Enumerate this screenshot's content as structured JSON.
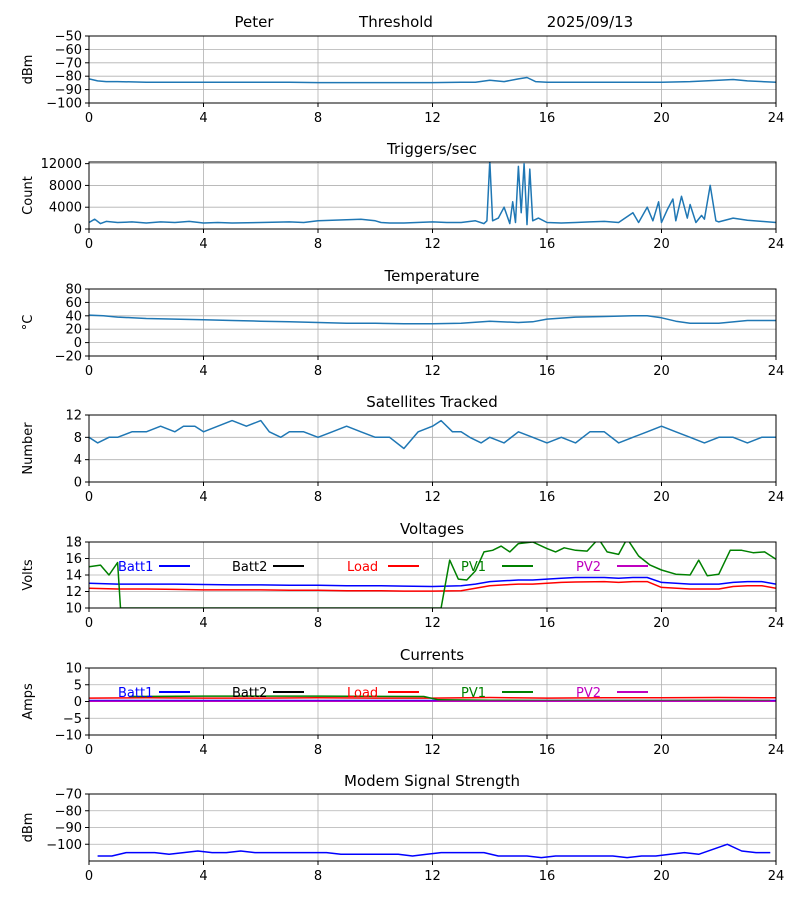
{
  "header": {
    "station": "Peter",
    "mode": "Threshold",
    "date": "2025/09/13"
  },
  "chart_data": [
    {
      "id": "signal",
      "type": "line",
      "title": "",
      "ylabel": "dBm",
      "xlim": [
        0,
        24
      ],
      "ylim": [
        -100,
        -50
      ],
      "xticks": [
        0,
        4,
        8,
        12,
        16,
        20,
        24
      ],
      "yticks": [
        -100,
        -90,
        -80,
        -70,
        -60,
        -50
      ],
      "grid": true,
      "series": [
        {
          "color": "#1f77b4",
          "x": [
            0,
            0.3,
            0.6,
            1,
            2,
            3,
            4,
            5,
            6,
            7,
            8,
            9,
            10,
            11,
            12,
            13,
            13.5,
            14,
            14.5,
            15,
            15.3,
            15.6,
            16,
            17,
            18,
            19,
            20,
            21,
            22,
            22.5,
            23,
            24
          ],
          "y": [
            -82,
            -83.5,
            -84,
            -84,
            -84.5,
            -84.5,
            -84.5,
            -84.5,
            -84.5,
            -84.5,
            -84.8,
            -84.8,
            -84.8,
            -84.8,
            -84.8,
            -84.5,
            -84.5,
            -83,
            -84,
            -82,
            -81,
            -84,
            -84.5,
            -84.5,
            -84.5,
            -84.5,
            -84.5,
            -84,
            -83,
            -82.5,
            -83.5,
            -84.5
          ]
        }
      ]
    },
    {
      "id": "triggers",
      "type": "line",
      "title": "Triggers/sec",
      "ylabel": "Count",
      "xlim": [
        0,
        24
      ],
      "ylim": [
        0,
        12300
      ],
      "xticks": [
        0,
        4,
        8,
        12,
        16,
        20,
        24
      ],
      "yticks": [
        0,
        4000,
        8000,
        12000
      ],
      "grid": true,
      "series": [
        {
          "color": "#1f77b4",
          "x": [
            0,
            0.2,
            0.4,
            0.6,
            1,
            1.5,
            2,
            2.5,
            3,
            3.5,
            4,
            4.5,
            5,
            6,
            7,
            7.5,
            8,
            8.5,
            9,
            9.5,
            10,
            10.2,
            10.5,
            11,
            12,
            12.5,
            13,
            13.5,
            13.8,
            13.9,
            14,
            14.1,
            14.3,
            14.5,
            14.7,
            14.8,
            14.9,
            15,
            15.1,
            15.2,
            15.3,
            15.4,
            15.5,
            15.7,
            16,
            16.5,
            17,
            17.5,
            18,
            18.5,
            19,
            19.2,
            19.5,
            19.7,
            19.9,
            20,
            20.2,
            20.4,
            20.5,
            20.7,
            20.9,
            21,
            21.2,
            21.4,
            21.5,
            21.7,
            21.9,
            22,
            22.5,
            23,
            23.5,
            24
          ],
          "y": [
            1200,
            1800,
            1000,
            1400,
            1200,
            1300,
            1100,
            1300,
            1200,
            1400,
            1100,
            1200,
            1100,
            1200,
            1300,
            1200,
            1500,
            1600,
            1700,
            1800,
            1500,
            1200,
            1100,
            1100,
            1300,
            1200,
            1200,
            1500,
            1000,
            1500,
            12500,
            1500,
            2000,
            4000,
            1000,
            5000,
            1200,
            11500,
            3000,
            12000,
            800,
            11000,
            1500,
            2000,
            1200,
            1100,
            1200,
            1300,
            1400,
            1200,
            3000,
            1200,
            4000,
            1500,
            5000,
            1200,
            3500,
            5500,
            1500,
            6000,
            2000,
            4500,
            1200,
            2500,
            1800,
            8000,
            1500,
            1300,
            2000,
            1600,
            1400,
            1200
          ]
        }
      ]
    },
    {
      "id": "temperature",
      "type": "line",
      "title": "Temperature",
      "ylabel": "°C",
      "xlim": [
        0,
        24
      ],
      "ylim": [
        -20,
        80
      ],
      "xticks": [
        0,
        4,
        8,
        12,
        16,
        20,
        24
      ],
      "yticks": [
        -20,
        0,
        20,
        40,
        60,
        80
      ],
      "grid": true,
      "series": [
        {
          "color": "#1f77b4",
          "x": [
            0,
            0.5,
            1,
            2,
            3,
            4,
            5,
            6,
            7,
            8,
            9,
            10,
            11,
            12,
            13,
            14,
            15,
            15.5,
            16,
            17,
            18,
            19,
            19.5,
            20,
            20.5,
            21,
            22,
            23,
            24
          ],
          "y": [
            41,
            40,
            38,
            36,
            35,
            34,
            33,
            32,
            31,
            30,
            29,
            29,
            28,
            28,
            29,
            32,
            30,
            31,
            35,
            38,
            39,
            40,
            40,
            37,
            32,
            29,
            29,
            33,
            33
          ]
        }
      ]
    },
    {
      "id": "satellites",
      "type": "line",
      "title": "Satellites Tracked",
      "ylabel": "Number",
      "xlim": [
        0,
        24
      ],
      "ylim": [
        0,
        12
      ],
      "xticks": [
        0,
        4,
        8,
        12,
        16,
        20,
        24
      ],
      "yticks": [
        0,
        4,
        8,
        12
      ],
      "grid": true,
      "series": [
        {
          "color": "#1f77b4",
          "x": [
            0,
            0.3,
            0.7,
            1,
            1.5,
            2,
            2.5,
            3,
            3.3,
            3.7,
            4,
            4.5,
            5,
            5.5,
            6,
            6.3,
            6.7,
            7,
            7.5,
            8,
            8.5,
            9,
            9.5,
            10,
            10.5,
            11,
            11.5,
            12,
            12.3,
            12.7,
            13,
            13.3,
            13.7,
            14,
            14.5,
            15,
            15.5,
            16,
            16.5,
            17,
            17.5,
            18,
            18.5,
            19,
            19.5,
            20,
            20.5,
            21,
            21.5,
            22,
            22.5,
            23,
            23.5,
            24
          ],
          "y": [
            8,
            7,
            8,
            8,
            9,
            9,
            10,
            9,
            10,
            10,
            9,
            10,
            11,
            10,
            11,
            9,
            8,
            9,
            9,
            8,
            9,
            10,
            9,
            8,
            8,
            6,
            9,
            10,
            11,
            9,
            9,
            8,
            7,
            8,
            7,
            9,
            8,
            7,
            8,
            7,
            9,
            9,
            7,
            8,
            9,
            10,
            9,
            8,
            7,
            8,
            8,
            7,
            8,
            8
          ]
        }
      ]
    },
    {
      "id": "voltages",
      "type": "line",
      "title": "Voltages",
      "ylabel": "Volts",
      "xlim": [
        0,
        24
      ],
      "ylim": [
        10,
        18
      ],
      "xticks": [
        0,
        4,
        8,
        12,
        16,
        20,
        24
      ],
      "yticks": [
        10,
        12,
        14,
        16,
        18
      ],
      "grid": true,
      "legend": "top, single row",
      "series": [
        {
          "name": "Batt1",
          "color": "#0000ff",
          "x": [
            0,
            1,
            2,
            3,
            4,
            5,
            6,
            7,
            8,
            9,
            10,
            11,
            12,
            13,
            13.5,
            14,
            14.5,
            15,
            15.5,
            16,
            16.5,
            17,
            18,
            18.5,
            19,
            19.5,
            20,
            21,
            22,
            22.5,
            23,
            23.5,
            24
          ],
          "y": [
            13.0,
            12.9,
            12.9,
            12.9,
            12.85,
            12.8,
            12.8,
            12.75,
            12.75,
            12.7,
            12.7,
            12.65,
            12.6,
            12.7,
            12.9,
            13.2,
            13.3,
            13.4,
            13.4,
            13.5,
            13.6,
            13.7,
            13.7,
            13.6,
            13.7,
            13.7,
            13.1,
            12.9,
            12.9,
            13.1,
            13.2,
            13.2,
            12.9
          ]
        },
        {
          "name": "Batt2",
          "color": "#000000",
          "x": [],
          "y": []
        },
        {
          "name": "Load",
          "color": "#ff0000",
          "x": [
            0,
            1,
            2,
            3,
            4,
            5,
            6,
            7,
            8,
            9,
            10,
            11,
            12,
            13,
            13.5,
            14,
            14.5,
            15,
            15.5,
            16,
            16.5,
            17,
            18,
            18.5,
            19,
            19.5,
            20,
            21,
            22,
            22.5,
            23,
            23.5,
            24
          ],
          "y": [
            12.4,
            12.3,
            12.3,
            12.25,
            12.2,
            12.2,
            12.2,
            12.15,
            12.15,
            12.1,
            12.1,
            12.05,
            12.05,
            12.1,
            12.4,
            12.7,
            12.8,
            12.9,
            12.9,
            13.0,
            13.1,
            13.15,
            13.2,
            13.1,
            13.2,
            13.2,
            12.5,
            12.3,
            12.3,
            12.6,
            12.7,
            12.7,
            12.4
          ]
        },
        {
          "name": "PV1",
          "color": "#008000",
          "x": [
            0,
            0.4,
            0.7,
            1.0,
            1.1,
            12.3,
            12.6,
            12.9,
            13.2,
            13.5,
            13.8,
            14.1,
            14.4,
            14.7,
            15.0,
            15.5,
            16.0,
            16.3,
            16.6,
            17.0,
            17.4,
            17.8,
            18.1,
            18.5,
            18.8,
            19.2,
            19.6,
            20.0,
            20.5,
            21.0,
            21.3,
            21.6,
            22.0,
            22.4,
            22.8,
            23.2,
            23.6,
            24.0
          ],
          "y": [
            15.0,
            15.2,
            14.0,
            15.5,
            10.0,
            10.0,
            15.8,
            13.5,
            13.4,
            14.5,
            16.8,
            17.0,
            17.5,
            16.8,
            17.8,
            18.0,
            17.2,
            16.8,
            17.3,
            17.0,
            16.9,
            18.4,
            16.8,
            16.5,
            18.4,
            16.3,
            15.2,
            14.6,
            14.1,
            14.0,
            15.8,
            13.9,
            14.1,
            17.0,
            17.0,
            16.7,
            16.8,
            15.9
          ]
        },
        {
          "name": "PV2",
          "color": "#bf00bf",
          "x": [],
          "y": []
        }
      ]
    },
    {
      "id": "currents",
      "type": "line",
      "title": "Currents",
      "ylabel": "Amps",
      "xlim": [
        0,
        24
      ],
      "ylim": [
        -10,
        10
      ],
      "xticks": [
        0,
        4,
        8,
        12,
        16,
        20,
        24
      ],
      "yticks": [
        -10,
        -5,
        0,
        5,
        10
      ],
      "grid": true,
      "legend": "top, single row",
      "series": [
        {
          "name": "Batt1",
          "color": "#0000ff",
          "x": [
            0,
            4,
            8,
            12,
            16,
            20,
            24
          ],
          "y": [
            0.3,
            0.3,
            0.3,
            0.3,
            0.3,
            0.3,
            0.3
          ]
        },
        {
          "name": "Batt2",
          "color": "#000000",
          "x": [],
          "y": []
        },
        {
          "name": "Load",
          "color": "#ff0000",
          "x": [
            0,
            2,
            4,
            6,
            8,
            10,
            12,
            14,
            16,
            18,
            20,
            22,
            24
          ],
          "y": [
            1.0,
            1.1,
            1.0,
            1.0,
            1.1,
            1.0,
            1.0,
            1.2,
            1.0,
            1.1,
            1.1,
            1.2,
            1.1
          ]
        },
        {
          "name": "PV1",
          "color": "#008000",
          "x": [
            1.4,
            4,
            8,
            11.7,
            12.2,
            14,
            16,
            18,
            20,
            22,
            23.8
          ],
          "y": [
            1.5,
            1.6,
            1.6,
            1.5,
            0.5,
            0.4,
            0.3,
            0.3,
            0.3,
            0.4,
            0.3
          ]
        },
        {
          "name": "PV2",
          "color": "#bf00bf",
          "x": [
            0,
            4,
            8,
            12,
            16,
            20,
            24
          ],
          "y": [
            0.1,
            0.1,
            0.1,
            0.1,
            0.1,
            0.1,
            0.1
          ]
        }
      ]
    },
    {
      "id": "modem",
      "type": "line",
      "title": "Modem Signal Strength",
      "ylabel": "dBm",
      "xlim": [
        0,
        24
      ],
      "ylim": [
        -110,
        -70
      ],
      "xticks": [
        0,
        4,
        8,
        12,
        16,
        20,
        24
      ],
      "yticks": [
        -100,
        -90,
        -80,
        -70
      ],
      "grid": true,
      "series": [
        {
          "color": "#0000ff",
          "x": [
            0.3,
            0.8,
            1.3,
            2.3,
            2.8,
            3.3,
            3.8,
            4.3,
            4.8,
            5.3,
            5.8,
            6.3,
            6.8,
            7.8,
            8.3,
            8.8,
            9.3,
            9.8,
            10.3,
            10.8,
            11.3,
            11.8,
            12.3,
            12.8,
            13.3,
            13.8,
            14.3,
            14.8,
            15.3,
            15.8,
            16.3,
            16.8,
            17.3,
            17.8,
            18.3,
            18.8,
            19.3,
            19.8,
            20.3,
            20.8,
            21.3,
            21.8,
            22.3,
            22.8,
            23.3,
            23.8
          ],
          "y": [
            -107,
            -107,
            -105,
            -105,
            -106,
            -105,
            -104,
            -105,
            -105,
            -104,
            -105,
            -105,
            -105,
            -105,
            -105,
            -106,
            -106,
            -106,
            -106,
            -106,
            -107,
            -106,
            -105,
            -105,
            -105,
            -105,
            -107,
            -107,
            -107,
            -108,
            -107,
            -107,
            -107,
            -107,
            -107,
            -108,
            -107,
            -107,
            -106,
            -105,
            -106,
            -103,
            -100,
            -104,
            -105,
            -105
          ]
        }
      ]
    }
  ]
}
